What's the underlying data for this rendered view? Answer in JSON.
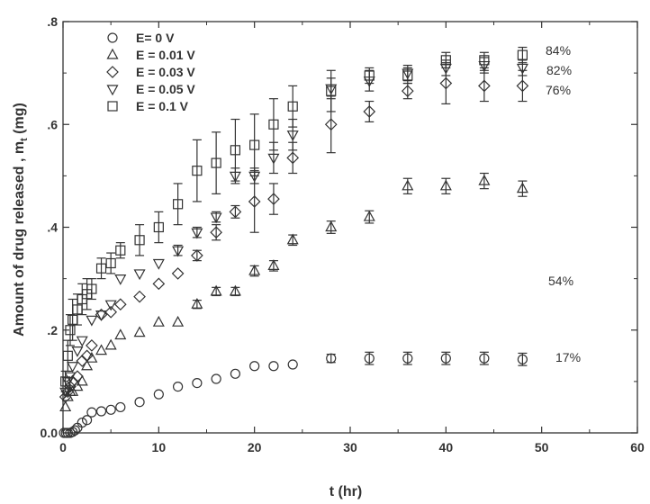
{
  "chart_data": {
    "type": "scatter",
    "title": "",
    "xlabel": "t (hr)",
    "ylabel": "Amount of drug released , m",
    "ylabel_subscript": "t",
    "ylabel_suffix": " (mg)",
    "xlim": [
      0,
      60
    ],
    "ylim": [
      0,
      0.8
    ],
    "x_ticks": [
      0,
      10,
      20,
      30,
      40,
      50,
      60
    ],
    "x_tick_labels": [
      "0",
      "10",
      "20",
      "30",
      "40",
      "50",
      "60"
    ],
    "y_ticks": [
      0,
      0.2,
      0.4,
      0.6,
      0.8
    ],
    "y_tick_labels": [
      "0.0",
      ".2",
      ".4",
      ".6",
      ".8"
    ],
    "grid": false,
    "legend_position": "top-left",
    "series": [
      {
        "name": "E= 0 V",
        "marker": "circle",
        "points": [
          [
            0.1,
            0.0
          ],
          [
            0.3,
            0.0
          ],
          [
            0.5,
            0.0
          ],
          [
            0.75,
            0.0
          ],
          [
            1,
            0.002
          ],
          [
            1.25,
            0.005
          ],
          [
            1.5,
            0.01
          ],
          [
            2,
            0.02
          ],
          [
            2.5,
            0.025
          ],
          [
            3,
            0.04
          ],
          [
            4,
            0.042
          ],
          [
            5,
            0.045
          ],
          [
            6,
            0.05
          ],
          [
            8,
            0.06
          ],
          [
            10,
            0.075
          ],
          [
            12,
            0.09
          ],
          [
            14,
            0.097
          ],
          [
            16,
            0.105
          ],
          [
            18,
            0.115
          ],
          [
            20,
            0.13
          ],
          [
            22,
            0.13
          ],
          [
            24,
            0.133
          ],
          [
            28,
            0.145
          ],
          [
            32,
            0.145
          ],
          [
            36,
            0.145
          ],
          [
            40,
            0.145
          ],
          [
            44,
            0.145
          ],
          [
            48,
            0.143
          ]
        ],
        "errors": [
          0,
          0,
          0,
          0,
          0,
          0,
          0,
          0,
          0,
          0,
          0,
          0,
          0,
          0,
          0,
          0,
          0,
          0,
          0,
          0,
          0,
          0,
          0.008,
          0.012,
          0.012,
          0.012,
          0.012,
          0.012
        ],
        "end_label": "17%"
      },
      {
        "name": "E = 0.01 V",
        "marker": "triangle-up",
        "points": [
          [
            0.25,
            0.05
          ],
          [
            0.5,
            0.07
          ],
          [
            0.75,
            0.08
          ],
          [
            1,
            0.08
          ],
          [
            1.5,
            0.09
          ],
          [
            2,
            0.1
          ],
          [
            2.5,
            0.13
          ],
          [
            3,
            0.145
          ],
          [
            4,
            0.16
          ],
          [
            5,
            0.17
          ],
          [
            6,
            0.19
          ],
          [
            8,
            0.195
          ],
          [
            10,
            0.215
          ],
          [
            12,
            0.215
          ],
          [
            14,
            0.25
          ],
          [
            16,
            0.275
          ],
          [
            18,
            0.275
          ],
          [
            20,
            0.315
          ],
          [
            22,
            0.325
          ],
          [
            24,
            0.375
          ],
          [
            28,
            0.4
          ],
          [
            32,
            0.42
          ],
          [
            36,
            0.48
          ],
          [
            40,
            0.48
          ],
          [
            44,
            0.49
          ],
          [
            48,
            0.475
          ]
        ],
        "errors": [
          0,
          0,
          0,
          0,
          0,
          0,
          0,
          0,
          0,
          0,
          0,
          0,
          0,
          0,
          0.008,
          0.008,
          0.008,
          0.01,
          0.01,
          0.01,
          0.012,
          0.012,
          0.015,
          0.015,
          0.015,
          0.015
        ],
        "end_label": "54%"
      },
      {
        "name": "E = 0.03 V",
        "marker": "diamond",
        "points": [
          [
            0.25,
            0.07
          ],
          [
            0.5,
            0.08
          ],
          [
            0.75,
            0.09
          ],
          [
            1,
            0.1
          ],
          [
            1.5,
            0.11
          ],
          [
            2,
            0.14
          ],
          [
            2.5,
            0.15
          ],
          [
            3,
            0.17
          ],
          [
            4,
            0.23
          ],
          [
            5,
            0.235
          ],
          [
            6,
            0.25
          ],
          [
            8,
            0.265
          ],
          [
            10,
            0.29
          ],
          [
            12,
            0.31
          ],
          [
            14,
            0.345
          ],
          [
            16,
            0.39
          ],
          [
            18,
            0.43
          ],
          [
            20,
            0.45
          ],
          [
            22,
            0.455
          ],
          [
            24,
            0.535
          ],
          [
            28,
            0.6
          ],
          [
            32,
            0.625
          ],
          [
            36,
            0.665
          ],
          [
            40,
            0.68
          ],
          [
            44,
            0.675
          ],
          [
            48,
            0.675
          ]
        ],
        "errors": [
          0,
          0,
          0,
          0,
          0,
          0,
          0,
          0,
          0,
          0,
          0,
          0,
          0,
          0,
          0.01,
          0.015,
          0.012,
          0.06,
          0.03,
          0.03,
          0.055,
          0.02,
          0.015,
          0.04,
          0.03,
          0.03
        ],
        "end_label": "76%"
      },
      {
        "name": "E = 0.05 V",
        "marker": "triangle-down",
        "points": [
          [
            0.25,
            0.08
          ],
          [
            0.5,
            0.1
          ],
          [
            0.75,
            0.11
          ],
          [
            1,
            0.13
          ],
          [
            1.5,
            0.16
          ],
          [
            2,
            0.18
          ],
          [
            3,
            0.22
          ],
          [
            4,
            0.23
          ],
          [
            5,
            0.25
          ],
          [
            6,
            0.3
          ],
          [
            8,
            0.31
          ],
          [
            10,
            0.33
          ],
          [
            12,
            0.355
          ],
          [
            14,
            0.39
          ],
          [
            16,
            0.42
          ],
          [
            18,
            0.5
          ],
          [
            20,
            0.5
          ],
          [
            22,
            0.535
          ],
          [
            24,
            0.58
          ],
          [
            28,
            0.67
          ],
          [
            32,
            0.685
          ],
          [
            36,
            0.7
          ],
          [
            40,
            0.71
          ],
          [
            44,
            0.715
          ],
          [
            48,
            0.71
          ]
        ],
        "errors": [
          0,
          0,
          0,
          0,
          0,
          0,
          0,
          0,
          0,
          0,
          0,
          0,
          0.01,
          0.01,
          0.01,
          0.015,
          0.015,
          0.03,
          0.03,
          0.02,
          0.02,
          0.015,
          0.015,
          0.015,
          0.015
        ],
        "end_label": "82%"
      },
      {
        "name": "E = 0.1 V",
        "marker": "square",
        "points": [
          [
            0.25,
            0.1
          ],
          [
            0.5,
            0.15
          ],
          [
            0.75,
            0.2
          ],
          [
            1,
            0.22
          ],
          [
            1.5,
            0.24
          ],
          [
            2,
            0.26
          ],
          [
            2.5,
            0.27
          ],
          [
            3,
            0.28
          ],
          [
            4,
            0.32
          ],
          [
            5,
            0.33
          ],
          [
            6,
            0.355
          ],
          [
            8,
            0.375
          ],
          [
            10,
            0.4
          ],
          [
            12,
            0.445
          ],
          [
            14,
            0.51
          ],
          [
            16,
            0.525
          ],
          [
            18,
            0.55
          ],
          [
            20,
            0.56
          ],
          [
            22,
            0.6
          ],
          [
            24,
            0.635
          ],
          [
            28,
            0.665
          ],
          [
            32,
            0.695
          ],
          [
            36,
            0.695
          ],
          [
            40,
            0.725
          ],
          [
            44,
            0.725
          ],
          [
            48,
            0.735
          ]
        ],
        "errors": [
          0.02,
          0.03,
          0.03,
          0.04,
          0.03,
          0.03,
          0.03,
          0.02,
          0.02,
          0.02,
          0.015,
          0.03,
          0.03,
          0.04,
          0.06,
          0.06,
          0.06,
          0.06,
          0.05,
          0.04,
          0.04,
          0.015,
          0.015,
          0.015,
          0.015,
          0.015
        ],
        "end_label": "84%"
      }
    ]
  }
}
